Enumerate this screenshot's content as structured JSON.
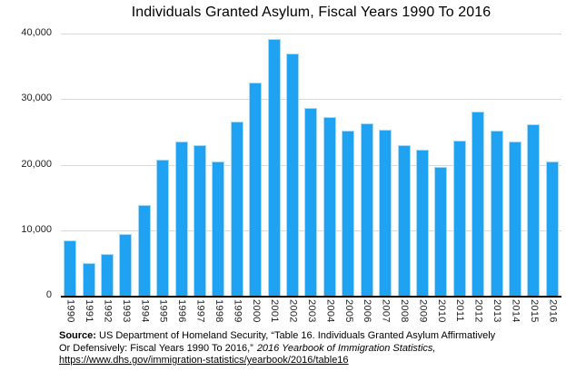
{
  "title": "Individuals Granted Asylum, Fiscal Years 1990 To 2016",
  "chart_data": {
    "type": "bar",
    "title": "Individuals Granted Asylum, Fiscal Years 1990 To 2016",
    "categories": [
      "1990",
      "1991",
      "1992",
      "1993",
      "1994",
      "1995",
      "1996",
      "1997",
      "1998",
      "1999",
      "2000",
      "2001",
      "2002",
      "2003",
      "2004",
      "2005",
      "2006",
      "2007",
      "2008",
      "2009",
      "2010",
      "2011",
      "2012",
      "2013",
      "2014",
      "2015",
      "2016"
    ],
    "values": [
      8472,
      5035,
      6307,
      9414,
      13817,
      20707,
      23533,
      22939,
      20506,
      26578,
      32492,
      39146,
      36976,
      28714,
      27321,
      25257,
      26351,
      25270,
      22930,
      22219,
      19700,
      23700,
      28100,
      25199,
      23533,
      26124,
      20455
    ],
    "xlabel": "",
    "ylabel": "",
    "ylim": [
      0,
      40000
    ],
    "yticks": [
      0,
      10000,
      20000,
      30000,
      40000
    ],
    "ytick_labels": [
      "0",
      "10,000",
      "20,000",
      "30,000",
      "40,000"
    ],
    "grid": "horizontal",
    "legend_position": "none"
  },
  "footer": {
    "source_bold": "Source:",
    "source_line1_rest": " US Department of Homeland Security, “Table 16. Individuals Granted Asylum Affirmatively",
    "source_line2": "Or Defensively: Fiscal Years 1990 To 2016,”",
    "source_line2_italic": "2016 Yearbook of Immigration Statistics,",
    "source_link": "https://www.dhs.gov/immigration-statistics/yearbook/2016/table16"
  },
  "colors": {
    "bar": "#1fa2f2",
    "bar_edge": "#a5d9f8",
    "gridline": "#d9d9d9",
    "axis": "#000000",
    "text": "#1a1a1a",
    "background": "#ffffff"
  }
}
